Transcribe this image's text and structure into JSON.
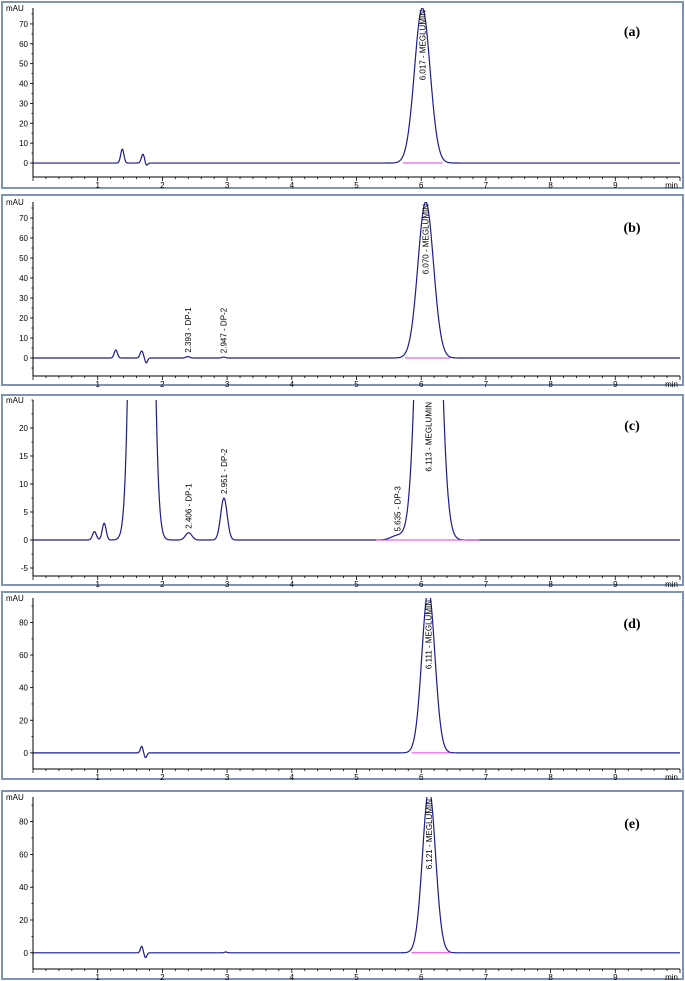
{
  "colors": {
    "panel_border": "#7f93b5",
    "trace": "#1c1c8c",
    "baseline": "#e040e0"
  },
  "chart_data": [
    {
      "type": "line",
      "panel_label": "(a)",
      "y_unit": "mAU",
      "x_unit": "min",
      "xlim": [
        0,
        10
      ],
      "ylim": [
        -3,
        78
      ],
      "y_ticks": [
        0,
        10,
        20,
        30,
        40,
        50,
        60,
        70
      ],
      "x_ticks": [
        1,
        2,
        3,
        4,
        5,
        6,
        7,
        8,
        9
      ],
      "peaks": [
        {
          "time": 1.38,
          "height": 7,
          "width": 0.025,
          "label": ""
        },
        {
          "time": 1.7,
          "height": 4.5,
          "width": 0.025,
          "label": ""
        },
        {
          "time": 6.017,
          "height": 78,
          "width": 0.12,
          "label": "6.017 - MEGLUMIN"
        }
      ],
      "dips": [
        {
          "time": 1.75,
          "depth": -1.5,
          "width": 0.02
        }
      ],
      "integration_baseline": [
        5.72,
        6.33
      ]
    },
    {
      "type": "line",
      "panel_label": "(b)",
      "y_unit": "mAU",
      "x_unit": "min",
      "xlim": [
        0,
        10
      ],
      "ylim": [
        -5,
        78
      ],
      "y_ticks": [
        0,
        10,
        20,
        30,
        40,
        50,
        60,
        70
      ],
      "x_ticks": [
        1,
        2,
        3,
        4,
        5,
        6,
        7,
        8,
        9
      ],
      "peaks": [
        {
          "time": 1.28,
          "height": 4,
          "width": 0.025,
          "label": ""
        },
        {
          "time": 1.68,
          "height": 3.5,
          "width": 0.025,
          "label": ""
        },
        {
          "time": 2.393,
          "height": 0.7,
          "width": 0.03,
          "label": "2.393 - DP-1"
        },
        {
          "time": 2.947,
          "height": 0.4,
          "width": 0.03,
          "label": "2.947 - DP-2"
        },
        {
          "time": 6.07,
          "height": 78,
          "width": 0.12,
          "label": "6.070 - MEGLUMIN"
        }
      ],
      "dips": [
        {
          "time": 1.75,
          "depth": -2.5,
          "width": 0.02
        }
      ],
      "integration_baseline": [
        5.75,
        6.45
      ]
    },
    {
      "type": "line",
      "panel_label": "(c)",
      "y_unit": "mAU",
      "x_unit": "min",
      "xlim": [
        0,
        10
      ],
      "ylim": [
        -5,
        25
      ],
      "y_ticks": [
        -5,
        0,
        5,
        10,
        15,
        20
      ],
      "x_ticks": [
        1,
        2,
        3,
        4,
        5,
        6,
        7,
        8,
        9
      ],
      "peaks": [
        {
          "time": 0.95,
          "height": 1.5,
          "width": 0.03,
          "label": ""
        },
        {
          "time": 1.1,
          "height": 3,
          "width": 0.03,
          "label": ""
        },
        {
          "time": 1.68,
          "height": 300,
          "width": 0.1,
          "label": ""
        },
        {
          "time": 2.406,
          "height": 1.3,
          "width": 0.05,
          "label": "2.406 - DP-1"
        },
        {
          "time": 2.951,
          "height": 7.5,
          "width": 0.05,
          "label": "2.951 - DP-2"
        },
        {
          "time": 5.635,
          "height": 0.8,
          "width": 0.1,
          "label": "5.635 - DP-3"
        },
        {
          "time": 6.113,
          "height": 120,
          "width": 0.13,
          "label": "6.113 - MEGLUMIN"
        }
      ],
      "dips": [],
      "integration_baseline": [
        5.3,
        6.9
      ]
    },
    {
      "type": "line",
      "panel_label": "(d)",
      "y_unit": "mAU",
      "x_unit": "min",
      "xlim": [
        0,
        10
      ],
      "ylim": [
        -5,
        95
      ],
      "y_ticks": [
        0,
        20,
        40,
        60,
        80
      ],
      "x_ticks": [
        1,
        2,
        3,
        4,
        5,
        6,
        7,
        8,
        9
      ],
      "peaks": [
        {
          "time": 6.111,
          "height": 100,
          "width": 0.1,
          "label": "6.111 - MEGLUMIN"
        },
        {
          "time": 1.68,
          "height": 4,
          "width": 0.02,
          "label": ""
        }
      ],
      "dips": [
        {
          "time": 1.74,
          "depth": -3,
          "width": 0.02
        }
      ],
      "integration_baseline": [
        5.85,
        6.45
      ]
    },
    {
      "type": "line",
      "panel_label": "(e)",
      "y_unit": "mAU",
      "x_unit": "min",
      "xlim": [
        0,
        10
      ],
      "ylim": [
        -5,
        95
      ],
      "y_ticks": [
        0,
        20,
        40,
        60,
        80
      ],
      "x_ticks": [
        1,
        2,
        3,
        4,
        5,
        6,
        7,
        8,
        9
      ],
      "peaks": [
        {
          "time": 6.121,
          "height": 100,
          "width": 0.1,
          "label": "6.121 - MEGLUMIN"
        },
        {
          "time": 1.68,
          "height": 4,
          "width": 0.02,
          "label": ""
        },
        {
          "time": 2.98,
          "height": 0.5,
          "width": 0.02,
          "label": ""
        }
      ],
      "dips": [
        {
          "time": 1.74,
          "depth": -3,
          "width": 0.02
        }
      ],
      "integration_baseline": [
        5.85,
        6.45
      ]
    }
  ]
}
